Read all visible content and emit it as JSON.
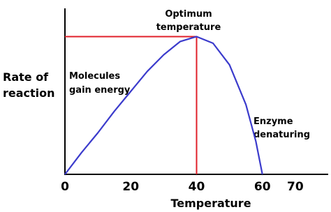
{
  "chart_data": {
    "type": "line",
    "x_label": "Temperature",
    "y_label": [
      "Rate of",
      "reaction"
    ],
    "x": [
      0,
      5,
      10,
      15,
      20,
      25,
      30,
      35,
      40,
      45,
      50,
      55,
      58,
      60
    ],
    "series": [
      {
        "color": "#3b3bcc",
        "values": [
          0,
          13,
          25,
          38,
          50,
          62,
          72,
          80,
          83,
          79,
          66,
          42,
          20,
          0
        ]
      }
    ],
    "xlim": [
      0,
      80
    ],
    "ylim": [
      0,
      100
    ],
    "xticks": [
      0,
      20,
      40,
      60,
      70
    ],
    "highlight": {
      "x": 40,
      "y": 83,
      "color": "#e0202a"
    },
    "annotations": [
      [
        "Optimum",
        "temperature"
      ],
      [
        "Molecules",
        "gain energy"
      ],
      [
        "Enzyme",
        "denaturing"
      ]
    ]
  }
}
